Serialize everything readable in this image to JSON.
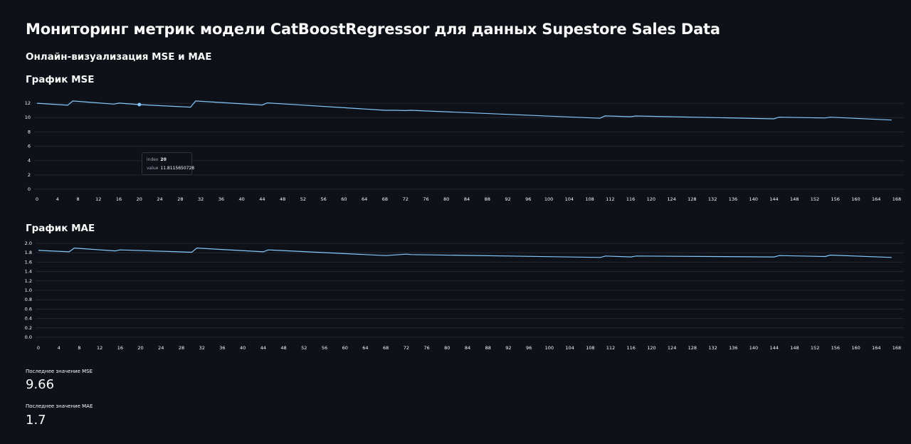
{
  "page": {
    "title": "Мониторинг метрик модели CatBoostRegressor для данных Supestore Sales Data",
    "subtitle": "Онлайн-визуализация MSE и MAE",
    "mse_heading": "График MSE",
    "mae_heading": "График MAE"
  },
  "metrics": {
    "mse_label": "Последнее значение MSE",
    "mse_value": "9.66",
    "mae_label": "Последнее значение MAE",
    "mae_value": "1.7"
  },
  "tooltip": {
    "index_label": "index",
    "index_value": "20",
    "value_label": "value",
    "value_value": "11.8115650728"
  },
  "colors": {
    "background": "#0e1117",
    "line": "#83c9ff",
    "grid": "#262730",
    "text": "#fafafa"
  },
  "chart_data": [
    {
      "type": "line",
      "title": "График MSE",
      "xlim": [
        0,
        168
      ],
      "ylim": [
        0,
        13
      ],
      "grid": true,
      "x_ticks": [
        0,
        4,
        8,
        12,
        16,
        20,
        24,
        28,
        32,
        36,
        40,
        44,
        48,
        52,
        56,
        60,
        64,
        68,
        72,
        76,
        80,
        84,
        88,
        92,
        96,
        100,
        104,
        108,
        112,
        116,
        120,
        124,
        128,
        132,
        136,
        140,
        144,
        148,
        152,
        156,
        160,
        164,
        168
      ],
      "y_ticks": [
        0,
        2,
        4,
        6,
        8,
        10,
        12
      ],
      "x": [
        0,
        6,
        7,
        15,
        16,
        20,
        30,
        31,
        44,
        45,
        68,
        70,
        72,
        73,
        110,
        111,
        116,
        117,
        144,
        145,
        154,
        155,
        167
      ],
      "y": [
        12.0,
        11.72,
        12.32,
        11.88,
        12.02,
        11.81,
        11.45,
        12.32,
        11.75,
        12.05,
        11.02,
        11.02,
        10.98,
        11.02,
        9.9,
        10.23,
        10.12,
        10.22,
        9.82,
        10.05,
        9.94,
        10.05,
        9.66
      ],
      "highlight_index": 20
    },
    {
      "type": "line",
      "title": "График MAE",
      "xlim": [
        0,
        168
      ],
      "ylim": [
        0,
        2.0
      ],
      "grid": true,
      "x_ticks": [
        0,
        4,
        8,
        12,
        16,
        20,
        24,
        28,
        32,
        36,
        40,
        44,
        48,
        52,
        56,
        60,
        64,
        68,
        72,
        76,
        80,
        84,
        88,
        92,
        96,
        100,
        104,
        108,
        112,
        116,
        120,
        124,
        128,
        132,
        136,
        140,
        144,
        148,
        152,
        156,
        160,
        164,
        168
      ],
      "y_ticks": [
        0.0,
        0.2,
        0.4,
        0.6,
        0.8,
        1.0,
        1.2,
        1.4,
        1.6,
        1.8,
        2.0
      ],
      "y_tick_labels": [
        "0.0",
        "0.2",
        "0.4",
        "0.6",
        "0.8",
        "1.0",
        "1.2",
        "1.4",
        "1.6",
        "1.8",
        "2.0"
      ],
      "x": [
        0,
        6,
        7,
        15,
        16,
        30,
        31,
        44,
        45,
        68,
        72,
        73,
        110,
        111,
        116,
        117,
        144,
        145,
        154,
        155,
        167
      ],
      "y": [
        1.85,
        1.82,
        1.9,
        1.84,
        1.86,
        1.81,
        1.9,
        1.82,
        1.86,
        1.74,
        1.77,
        1.76,
        1.7,
        1.73,
        1.71,
        1.73,
        1.71,
        1.74,
        1.72,
        1.75,
        1.7
      ]
    }
  ]
}
